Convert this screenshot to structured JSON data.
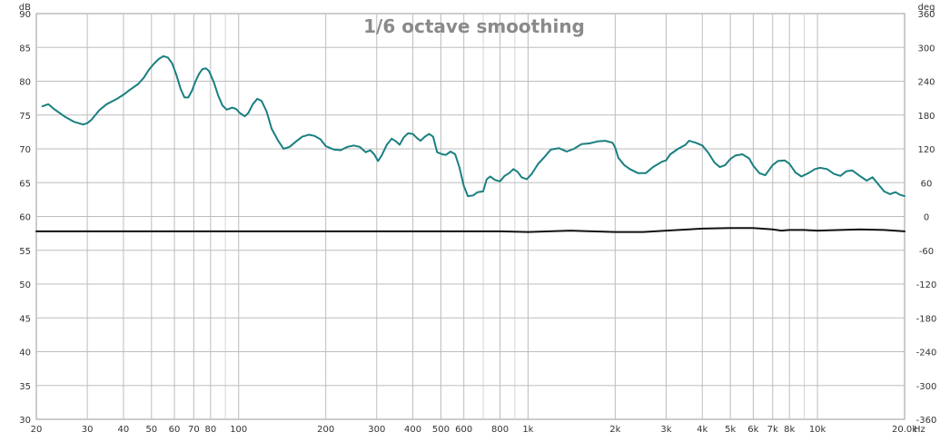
{
  "chart_data": {
    "type": "line",
    "title": "1/6 octave smoothing",
    "x_scale": "log",
    "xlim": [
      20,
      20000
    ],
    "x_unit": "Hz",
    "x_ticks": [
      {
        "v": 20,
        "label": "20"
      },
      {
        "v": 30,
        "label": "30"
      },
      {
        "v": 40,
        "label": "40"
      },
      {
        "v": 50,
        "label": "50"
      },
      {
        "v": 60,
        "label": "60"
      },
      {
        "v": 70,
        "label": "70"
      },
      {
        "v": 80,
        "label": "80"
      },
      {
        "v": 100,
        "label": "100"
      },
      {
        "v": 200,
        "label": "200"
      },
      {
        "v": 300,
        "label": "300"
      },
      {
        "v": 400,
        "label": "400"
      },
      {
        "v": 500,
        "label": "500"
      },
      {
        "v": 600,
        "label": "600"
      },
      {
        "v": 800,
        "label": "800"
      },
      {
        "v": 1000,
        "label": "1k"
      },
      {
        "v": 2000,
        "label": "2k"
      },
      {
        "v": 3000,
        "label": "3k"
      },
      {
        "v": 4000,
        "label": "4k"
      },
      {
        "v": 5000,
        "label": "5k"
      },
      {
        "v": 6000,
        "label": "6k"
      },
      {
        "v": 7000,
        "label": "7k"
      },
      {
        "v": 8000,
        "label": "8k"
      },
      {
        "v": 10000,
        "label": "10k"
      },
      {
        "v": 20000,
        "label": "20.0k"
      }
    ],
    "y_left": {
      "unit": "dB",
      "lim": [
        30,
        90
      ],
      "ticks": [
        90,
        85,
        80,
        75,
        70,
        65,
        60,
        55,
        50,
        45,
        40,
        35,
        30
      ]
    },
    "y_right": {
      "unit": "deg",
      "lim": [
        -360,
        360
      ],
      "ticks": [
        360,
        300,
        240,
        180,
        120,
        60,
        0,
        -60,
        -120,
        -180,
        -240,
        -300,
        -360
      ]
    },
    "grid": true,
    "series": [
      {
        "axis": "left",
        "color": "#1a7f80",
        "points": [
          [
            21,
            76.3
          ],
          [
            22,
            76.6
          ],
          [
            23,
            75.9
          ],
          [
            25,
            74.8
          ],
          [
            27,
            74.0
          ],
          [
            29,
            73.6
          ],
          [
            30,
            73.8
          ],
          [
            31,
            74.3
          ],
          [
            33,
            75.7
          ],
          [
            35,
            76.6
          ],
          [
            38,
            77.4
          ],
          [
            40,
            78.0
          ],
          [
            42,
            78.7
          ],
          [
            45,
            79.6
          ],
          [
            47,
            80.5
          ],
          [
            49,
            81.7
          ],
          [
            51,
            82.6
          ],
          [
            53,
            83.3
          ],
          [
            55,
            83.7
          ],
          [
            57,
            83.5
          ],
          [
            59,
            82.6
          ],
          [
            61,
            80.9
          ],
          [
            63,
            78.9
          ],
          [
            65,
            77.6
          ],
          [
            67,
            77.6
          ],
          [
            69,
            78.6
          ],
          [
            71,
            80.0
          ],
          [
            73,
            81.1
          ],
          [
            75,
            81.8
          ],
          [
            77,
            81.9
          ],
          [
            79,
            81.5
          ],
          [
            82,
            79.9
          ],
          [
            85,
            77.9
          ],
          [
            88,
            76.4
          ],
          [
            91,
            75.8
          ],
          [
            95,
            76.1
          ],
          [
            98,
            75.9
          ],
          [
            101,
            75.3
          ],
          [
            105,
            74.8
          ],
          [
            108,
            75.3
          ],
          [
            112,
            76.6
          ],
          [
            116,
            77.4
          ],
          [
            120,
            77.1
          ],
          [
            125,
            75.5
          ],
          [
            130,
            73.0
          ],
          [
            137,
            71.2
          ],
          [
            143,
            70.0
          ],
          [
            150,
            70.3
          ],
          [
            158,
            71.1
          ],
          [
            166,
            71.8
          ],
          [
            175,
            72.1
          ],
          [
            183,
            71.9
          ],
          [
            192,
            71.4
          ],
          [
            200,
            70.4
          ],
          [
            213,
            69.9
          ],
          [
            225,
            69.8
          ],
          [
            238,
            70.3
          ],
          [
            250,
            70.5
          ],
          [
            262,
            70.3
          ],
          [
            275,
            69.5
          ],
          [
            285,
            69.8
          ],
          [
            294,
            69.2
          ],
          [
            303,
            68.2
          ],
          [
            312,
            69.0
          ],
          [
            325,
            70.6
          ],
          [
            338,
            71.5
          ],
          [
            350,
            71.1
          ],
          [
            360,
            70.6
          ],
          [
            372,
            71.7
          ],
          [
            385,
            72.3
          ],
          [
            400,
            72.2
          ],
          [
            413,
            71.6
          ],
          [
            425,
            71.2
          ],
          [
            440,
            71.8
          ],
          [
            455,
            72.2
          ],
          [
            470,
            71.8
          ],
          [
            485,
            69.5
          ],
          [
            505,
            69.2
          ],
          [
            520,
            69.1
          ],
          [
            540,
            69.6
          ],
          [
            560,
            69.2
          ],
          [
            580,
            67.2
          ],
          [
            600,
            64.5
          ],
          [
            620,
            63.0
          ],
          [
            645,
            63.1
          ],
          [
            670,
            63.6
          ],
          [
            700,
            63.7
          ],
          [
            720,
            65.5
          ],
          [
            740,
            65.9
          ],
          [
            770,
            65.4
          ],
          [
            800,
            65.2
          ],
          [
            830,
            66.0
          ],
          [
            860,
            66.4
          ],
          [
            890,
            67.0
          ],
          [
            920,
            66.6
          ],
          [
            950,
            65.8
          ],
          [
            990,
            65.5
          ],
          [
            1030,
            66.3
          ],
          [
            1080,
            67.7
          ],
          [
            1140,
            68.8
          ],
          [
            1200,
            69.9
          ],
          [
            1280,
            70.1
          ],
          [
            1360,
            69.6
          ],
          [
            1440,
            70.0
          ],
          [
            1530,
            70.7
          ],
          [
            1630,
            70.8
          ],
          [
            1740,
            71.1
          ],
          [
            1850,
            71.2
          ],
          [
            1960,
            70.9
          ],
          [
            2000,
            70.2
          ],
          [
            2050,
            68.7
          ],
          [
            2150,
            67.6
          ],
          [
            2250,
            67.0
          ],
          [
            2400,
            66.4
          ],
          [
            2550,
            66.4
          ],
          [
            2700,
            67.3
          ],
          [
            2900,
            68.1
          ],
          [
            3000,
            68.3
          ],
          [
            3100,
            69.2
          ],
          [
            3300,
            70.0
          ],
          [
            3500,
            70.6
          ],
          [
            3600,
            71.2
          ],
          [
            3800,
            70.9
          ],
          [
            4000,
            70.5
          ],
          [
            4200,
            69.4
          ],
          [
            4400,
            68.0
          ],
          [
            4600,
            67.3
          ],
          [
            4800,
            67.6
          ],
          [
            5000,
            68.5
          ],
          [
            5200,
            69.0
          ],
          [
            5500,
            69.2
          ],
          [
            5800,
            68.6
          ],
          [
            6000,
            67.5
          ],
          [
            6300,
            66.4
          ],
          [
            6600,
            66.1
          ],
          [
            7000,
            67.6
          ],
          [
            7300,
            68.2
          ],
          [
            7700,
            68.3
          ],
          [
            8000,
            67.8
          ],
          [
            8400,
            66.5
          ],
          [
            8800,
            65.9
          ],
          [
            9300,
            66.4
          ],
          [
            9800,
            67.0
          ],
          [
            10200,
            67.2
          ],
          [
            10800,
            67.0
          ],
          [
            11400,
            66.3
          ],
          [
            12000,
            66.0
          ],
          [
            12600,
            66.7
          ],
          [
            13200,
            66.8
          ],
          [
            14000,
            66.0
          ],
          [
            14800,
            65.3
          ],
          [
            15500,
            65.8
          ],
          [
            16200,
            64.8
          ],
          [
            17000,
            63.7
          ],
          [
            17800,
            63.3
          ],
          [
            18600,
            63.6
          ],
          [
            19300,
            63.2
          ],
          [
            20000,
            63.0
          ]
        ]
      },
      {
        "axis": "left",
        "color": "#111111",
        "points": [
          [
            20,
            57.8
          ],
          [
            100,
            57.8
          ],
          [
            500,
            57.8
          ],
          [
            800,
            57.8
          ],
          [
            1000,
            57.7
          ],
          [
            1400,
            57.9
          ],
          [
            2000,
            57.7
          ],
          [
            2500,
            57.7
          ],
          [
            3000,
            57.9
          ],
          [
            4000,
            58.2
          ],
          [
            5000,
            58.3
          ],
          [
            6000,
            58.3
          ],
          [
            7000,
            58.1
          ],
          [
            7500,
            57.9
          ],
          [
            8000,
            58.0
          ],
          [
            9000,
            58.0
          ],
          [
            10000,
            57.9
          ],
          [
            12000,
            58.0
          ],
          [
            14000,
            58.1
          ],
          [
            17000,
            58.0
          ],
          [
            20000,
            57.8
          ]
        ]
      }
    ]
  }
}
